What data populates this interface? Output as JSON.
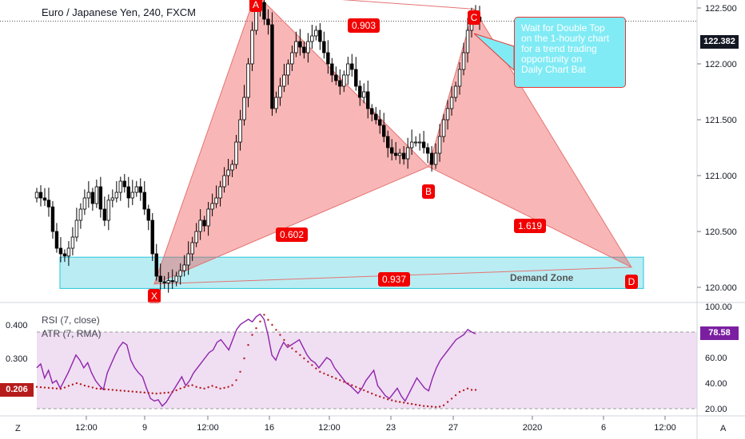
{
  "header": {
    "title": "Euro / Japanese Yen, 240, FXCM",
    "last_price": "122.382",
    "rsi_label": "RSI (7, close)",
    "atr_label": "ATR (7, RMA)",
    "rsi_value": "78.58",
    "atr_value": "0.206",
    "callout": "Wait for Double Top\non the 1-hourly chart\nfor a trend trading\nopportunity on\nDaily Chart Bat",
    "zone_label": "Demand Zone",
    "corner_left": "Z",
    "corner_right": "A"
  },
  "chart_data": [
    {
      "type": "candlestick",
      "title": "Euro / Japanese Yen, 240, FXCM",
      "y_ticks": [
        "122.500",
        "122.000",
        "121.500",
        "121.000",
        "120.500",
        "120.000"
      ],
      "ylim": [
        119.9,
        122.65
      ],
      "x_ticks": [
        "12:00",
        "9",
        "12:00",
        "16",
        "12:00",
        "23",
        "27",
        "2020",
        "6",
        "12:00"
      ],
      "last_price": 122.382,
      "pattern": {
        "name": "Bat",
        "points": [
          {
            "label": "X",
            "price": 120.03
          },
          {
            "label": "A",
            "price": 122.63
          },
          {
            "label": "B",
            "price": 121.08
          },
          {
            "label": "C",
            "price": 122.49
          },
          {
            "label": "D",
            "price": 120.18
          }
        ],
        "ratios": [
          "0.903",
          "0.602",
          "1.619",
          "0.937"
        ]
      },
      "demand_zone": {
        "label": "Demand Zone",
        "low": 119.99,
        "high": 120.27
      },
      "close_series": [
        120.85,
        120.8,
        120.78,
        120.72,
        120.5,
        120.35,
        120.3,
        120.28,
        120.35,
        120.45,
        120.6,
        120.7,
        120.8,
        120.85,
        120.75,
        120.9,
        120.7,
        120.6,
        120.78,
        120.8,
        120.85,
        120.95,
        120.9,
        120.8,
        120.85,
        120.9,
        120.85,
        120.7,
        120.6,
        120.3,
        120.1,
        120.05,
        120.04,
        120.06,
        120.05,
        120.1,
        120.15,
        120.2,
        120.3,
        120.4,
        120.5,
        120.6,
        120.55,
        120.7,
        120.75,
        120.8,
        120.9,
        121.0,
        121.05,
        121.1,
        121.3,
        121.5,
        121.7,
        122.0,
        122.3,
        122.5,
        122.55,
        122.4,
        122.35,
        121.6,
        121.7,
        121.8,
        121.9,
        122.0,
        122.1,
        122.2,
        122.15,
        122.1,
        122.2,
        122.25,
        122.3,
        122.2,
        122.1,
        122.0,
        121.9,
        121.85,
        121.8,
        121.9,
        122.0,
        121.95,
        121.8,
        121.7,
        121.75,
        121.6,
        121.55,
        121.5,
        121.45,
        121.35,
        121.25,
        121.2,
        121.18,
        121.2,
        121.15,
        121.25,
        121.3,
        121.3,
        121.3,
        121.25,
        121.2,
        121.1,
        121.2,
        121.35,
        121.5,
        121.6,
        121.7,
        121.8,
        121.95,
        122.1,
        122.3,
        122.45,
        122.42,
        122.38
      ]
    },
    {
      "type": "line",
      "series": [
        {
          "name": "RSI (7, close)",
          "values": [
            52,
            55,
            44,
            50,
            40,
            42,
            36,
            42,
            48,
            55,
            62,
            58,
            52,
            56,
            48,
            42,
            38,
            35,
            48,
            55,
            62,
            68,
            72,
            70,
            58,
            52,
            48,
            45,
            36,
            28,
            26,
            27,
            22,
            25,
            30,
            35,
            40,
            45,
            38,
            42,
            48,
            52,
            56,
            60,
            64,
            66,
            72,
            74,
            70,
            66,
            74,
            82,
            86,
            88,
            90,
            88,
            92,
            94,
            90,
            78,
            62,
            58,
            66,
            72,
            68,
            70,
            72,
            74,
            68,
            62,
            58,
            56,
            52,
            56,
            60,
            58,
            52,
            48,
            44,
            40,
            38,
            35,
            32,
            36,
            42,
            46,
            50,
            38,
            34,
            30,
            28,
            32,
            36,
            30,
            26,
            32,
            38,
            44,
            40,
            36,
            34,
            44,
            52,
            58,
            62,
            66,
            70,
            74,
            76,
            78,
            82,
            80,
            78.58
          ]
        }
      ],
      "ylim": [
        15,
        100
      ],
      "right_ticks": [
        "100.00",
        "80.00",
        "60.00",
        "40.00",
        "20.00"
      ],
      "last_value": 78.58
    },
    {
      "type": "scatter",
      "series": [
        {
          "name": "ATR (7, RMA)",
          "values": [
            0.215,
            0.214,
            0.213,
            0.212,
            0.211,
            0.21,
            0.209,
            0.213,
            0.218,
            0.222,
            0.226,
            0.223,
            0.219,
            0.216,
            0.213,
            0.21,
            0.209,
            0.208,
            0.207,
            0.206,
            0.205,
            0.204,
            0.203,
            0.202,
            0.201,
            0.2,
            0.199,
            0.198,
            0.197,
            0.196,
            0.195,
            0.196,
            0.197,
            0.198,
            0.2,
            0.205,
            0.21,
            0.214,
            0.218,
            0.22,
            0.215,
            0.212,
            0.21,
            0.214,
            0.218,
            0.214,
            0.21,
            0.212,
            0.215,
            0.22,
            0.235,
            0.26,
            0.3,
            0.34,
            0.37,
            0.39,
            0.41,
            0.43,
            0.415,
            0.4,
            0.385,
            0.37,
            0.355,
            0.34,
            0.33,
            0.32,
            0.31,
            0.3,
            0.29,
            0.28,
            0.27,
            0.26,
            0.255,
            0.25,
            0.245,
            0.24,
            0.235,
            0.23,
            0.225,
            0.22,
            0.215,
            0.21,
            0.205,
            0.2,
            0.195,
            0.19,
            0.186,
            0.182,
            0.178,
            0.175,
            0.172,
            0.17,
            0.168,
            0.166,
            0.164,
            0.162,
            0.16,
            0.158,
            0.157,
            0.156,
            0.155,
            0.156,
            0.16,
            0.17,
            0.18,
            0.19,
            0.2,
            0.205,
            0.21,
            0.206,
            0.206
          ]
        }
      ],
      "left_ticks": [
        "0.400",
        "0.300"
      ],
      "last_value": 0.206
    }
  ]
}
